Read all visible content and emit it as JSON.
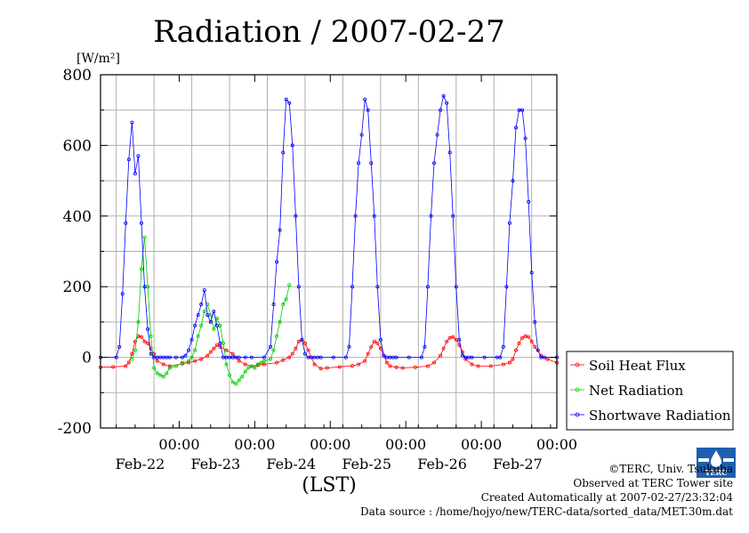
{
  "chart_data": {
    "type": "line",
    "title": "Radiation / 2007-02-27",
    "ylabel_unit": "[W/m²]",
    "ylim": [
      -200,
      800
    ],
    "yticks": [
      "-200",
      "0",
      "200",
      "400",
      "600",
      "800"
    ],
    "xlabel": "(LST)",
    "xlim_hours": [
      0,
      145
    ],
    "xticks": [
      {
        "hour": 25,
        "time": "00:00",
        "date": "Feb-22"
      },
      {
        "hour": 49,
        "time": "00:00",
        "date": "Feb-23"
      },
      {
        "hour": 73,
        "time": "00:00",
        "date": "Feb-24"
      },
      {
        "hour": 97,
        "time": "00:00",
        "date": "Feb-25"
      },
      {
        "hour": 121,
        "time": "00:00",
        "date": "Feb-26"
      },
      {
        "hour": 145,
        "time": "00:00",
        "date": "Feb-27"
      }
    ],
    "grid": true,
    "legend": "right",
    "series": [
      {
        "name": "Soil Heat Flux",
        "color": "#ff0000",
        "x": [
          0,
          4,
          8,
          9,
          10,
          11,
          12,
          13,
          14,
          15,
          16,
          17,
          18,
          20,
          22,
          26,
          28,
          30,
          32,
          34,
          35,
          36,
          37,
          38,
          40,
          42,
          44,
          46,
          48,
          50,
          52,
          56,
          58,
          60,
          61,
          62,
          63,
          64,
          65,
          66,
          67,
          68,
          70,
          72,
          76,
          80,
          82,
          84,
          85,
          86,
          87,
          88,
          89,
          90,
          91,
          92,
          94,
          96,
          100,
          104,
          106,
          108,
          109,
          110,
          111,
          112,
          113,
          114,
          115,
          116,
          118,
          120,
          124,
          128,
          130,
          131,
          132,
          133,
          134,
          135,
          136,
          137,
          138,
          140,
          142,
          145
        ],
        "y": [
          -28,
          -27,
          -25,
          -15,
          10,
          45,
          60,
          58,
          45,
          40,
          25,
          10,
          -10,
          -20,
          -25,
          -18,
          -15,
          -10,
          -5,
          5,
          15,
          25,
          35,
          30,
          20,
          10,
          -10,
          -20,
          -25,
          -22,
          -20,
          -15,
          -8,
          0,
          10,
          25,
          45,
          50,
          40,
          20,
          0,
          -20,
          -32,
          -30,
          -27,
          -24,
          -20,
          -10,
          10,
          30,
          45,
          40,
          25,
          5,
          -15,
          -25,
          -28,
          -30,
          -28,
          -25,
          -15,
          5,
          25,
          45,
          55,
          58,
          50,
          35,
          15,
          -5,
          -20,
          -25,
          -25,
          -20,
          -15,
          -5,
          20,
          40,
          55,
          60,
          58,
          45,
          30,
          5,
          -5,
          -15
        ]
      },
      {
        "name": "Net Radiation",
        "color": "#00cc00",
        "x": [
          10,
          11,
          12,
          13,
          14,
          15,
          16,
          17,
          18,
          19,
          20,
          21,
          22,
          24,
          26,
          28,
          29,
          30,
          31,
          32,
          33,
          34,
          35,
          36,
          37,
          38,
          39,
          40,
          41,
          42,
          43,
          44,
          45,
          46,
          47,
          48,
          49,
          50,
          51,
          52,
          54,
          55,
          56,
          57,
          58,
          59,
          60
        ],
        "y": [
          -5,
          20,
          100,
          250,
          340,
          200,
          60,
          -30,
          -45,
          -50,
          -55,
          -45,
          -30,
          -25,
          -15,
          -10,
          0,
          20,
          60,
          90,
          130,
          150,
          120,
          80,
          110,
          90,
          40,
          -20,
          -50,
          -70,
          -75,
          -65,
          -55,
          -40,
          -30,
          -25,
          -30,
          -20,
          -15,
          -10,
          -5,
          20,
          60,
          100,
          150,
          165,
          205
        ]
      },
      {
        "name": "Shortwave Radiation",
        "color": "#0000ff",
        "x": [
          0,
          5,
          6,
          7,
          8,
          9,
          10,
          11,
          12,
          13,
          14,
          15,
          16,
          17,
          18,
          19,
          20,
          21,
          22,
          24,
          26,
          27,
          28,
          29,
          30,
          31,
          32,
          33,
          34,
          35,
          36,
          37,
          38,
          39,
          40,
          41,
          42,
          43,
          44,
          46,
          48,
          52,
          54,
          55,
          56,
          57,
          58,
          59,
          60,
          61,
          62,
          63,
          64,
          65,
          66,
          67,
          68,
          69,
          70,
          74,
          78,
          79,
          80,
          81,
          82,
          83,
          84,
          85,
          86,
          87,
          88,
          89,
          90,
          91,
          92,
          93,
          94,
          98,
          102,
          103,
          104,
          105,
          106,
          107,
          108,
          109,
          110,
          111,
          112,
          113,
          114,
          115,
          116,
          117,
          118,
          122,
          126,
          127,
          128,
          129,
          130,
          131,
          132,
          133,
          134,
          135,
          136,
          137,
          138,
          139,
          140,
          141,
          145
        ],
        "y": [
          0,
          0,
          30,
          180,
          380,
          560,
          665,
          520,
          570,
          380,
          200,
          80,
          10,
          0,
          0,
          0,
          0,
          0,
          0,
          0,
          0,
          5,
          20,
          50,
          90,
          120,
          150,
          190,
          120,
          100,
          130,
          90,
          40,
          0,
          0,
          0,
          0,
          0,
          0,
          0,
          0,
          0,
          30,
          150,
          270,
          360,
          580,
          730,
          720,
          600,
          400,
          200,
          50,
          10,
          0,
          0,
          0,
          0,
          0,
          0,
          0,
          30,
          200,
          400,
          550,
          630,
          730,
          700,
          550,
          400,
          200,
          50,
          5,
          0,
          0,
          0,
          0,
          0,
          0,
          30,
          200,
          400,
          550,
          630,
          700,
          740,
          720,
          580,
          400,
          200,
          50,
          5,
          0,
          0,
          0,
          0,
          0,
          0,
          30,
          200,
          380,
          500,
          650,
          700,
          700,
          620,
          440,
          240,
          100,
          20,
          0,
          0,
          0
        ]
      }
    ]
  },
  "credits": {
    "copyright": "©TERC, Univ. Tsukuba",
    "observed": "Observed at TERC Tower site",
    "created": "Created Automatically at 2007-02-27/23:32:04",
    "source": "Data source : /home/hojyo/new/TERC-data/sorted_data/MET.30m.dat"
  },
  "logo": {
    "text": "TERC",
    "color": "#1e5fb0"
  }
}
